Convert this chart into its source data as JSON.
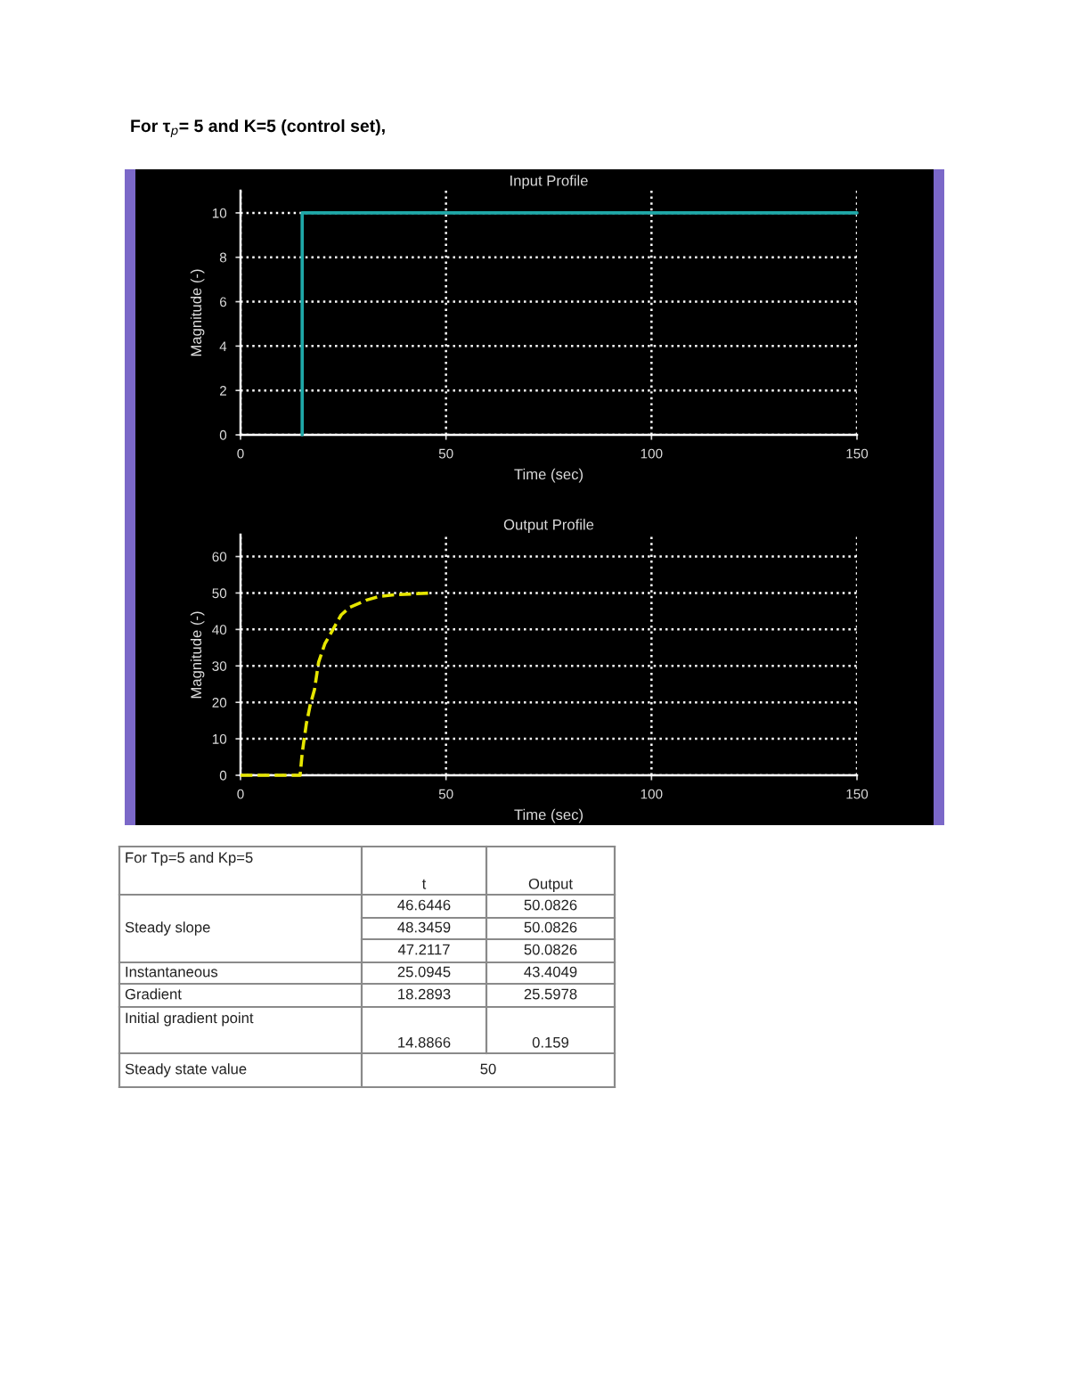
{
  "chart_data": [
    {
      "type": "line",
      "title": "Input Profile",
      "xlabel": "Time (sec)",
      "ylabel": "Magnitude (-)",
      "annotations": [
        "For τ$_{p}$= 5 and K=5 (control set),"
      ],
      "x": [
        15,
        15,
        150
      ],
      "values": [
        0,
        10,
        10
      ],
      "color": "#1fa8a8",
      "line_style": "solid",
      "xlim": [
        0,
        150
      ],
      "xticks": [
        0,
        50,
        100,
        150
      ],
      "ylim": [
        0,
        11
      ],
      "yticks": [
        0,
        2,
        4,
        6,
        8,
        10
      ],
      "grid": true
    },
    {
      "type": "line",
      "title": "Output Profile",
      "xlabel": "Time (sec)",
      "ylabel": "Magnitude (-)",
      "x": [
        0,
        14.5,
        15,
        16,
        17,
        18,
        19,
        20.5,
        22.5,
        24.5,
        26.5,
        30.5,
        33.5,
        37.5,
        46.5
      ],
      "values": [
        0,
        0,
        6,
        14,
        19.5,
        23.5,
        31,
        36,
        40,
        44,
        46,
        48,
        49,
        49.5,
        50
      ],
      "color": "#e6e600",
      "line_style": "dashed",
      "xlim": [
        0,
        150
      ],
      "xticks": [
        0,
        50,
        100,
        150
      ],
      "ylim": [
        0,
        66
      ],
      "yticks": [
        0,
        10,
        20,
        30,
        40,
        50,
        60
      ],
      "grid": true
    },
    {
      "type": "other",
      "annotations": [
        "For Tp=5 and Kp=5",
        "t",
        "Output",
        "Steady slope",
        "46.6446",
        "50.0826",
        "48.3459",
        "50.0826",
        "47.2117",
        "50.0826",
        "Instantaneous",
        "25.0945",
        "43.4049",
        "Gradient",
        "18.2893",
        "25.5978",
        "Initial gradient point",
        "14.8866",
        "0.159",
        "Steady state value",
        "50"
      ]
    }
  ]
}
